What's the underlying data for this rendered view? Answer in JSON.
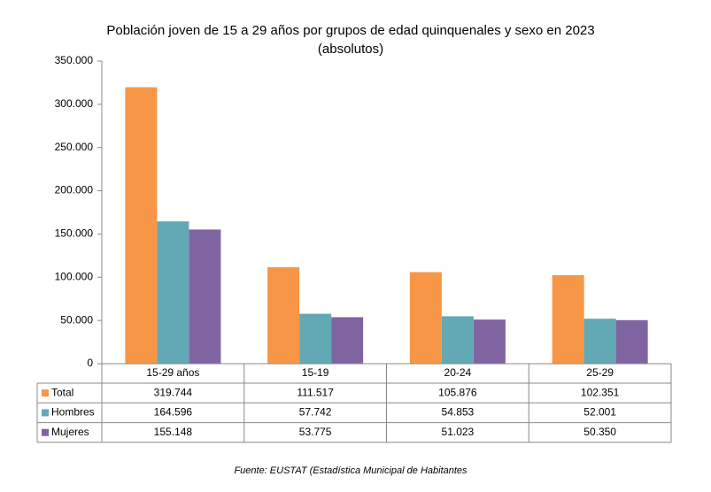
{
  "chart_data": {
    "type": "bar",
    "title": "Población joven de 15 a 29 años por grupos de edad quinquenales y sexo en 2023",
    "subtitle": "(absolutos)",
    "source": "Fuente: EUSTAT (Estadística Municipal de Habitantes",
    "categories": [
      "15-29 años",
      "15-19",
      "20-24",
      "25-29"
    ],
    "series": [
      {
        "name": "Total",
        "color": "#f79646",
        "values": [
          319744,
          111517,
          105876,
          102351
        ],
        "value_labels": [
          "319.744",
          "111.517",
          "105.876",
          "102.351"
        ]
      },
      {
        "name": "Hombres",
        "color": "#62a9b5",
        "values": [
          164596,
          57742,
          54853,
          52001
        ],
        "value_labels": [
          "164.596",
          "57.742",
          "54.853",
          "52.001"
        ]
      },
      {
        "name": "Mujeres",
        "color": "#8064a2",
        "values": [
          155148,
          53775,
          51023,
          50350
        ],
        "value_labels": [
          "155.148",
          "53.775",
          "51.023",
          "50.350"
        ]
      }
    ],
    "ylim": [
      0,
      350000
    ],
    "yticks": [
      0,
      {
        "value": 50000,
        "label": "50.000"
      },
      {
        "value": 100000,
        "label": "100.000"
      },
      {
        "value": 150000,
        "label": "150.000"
      },
      {
        "value": 200000,
        "label": "200.000"
      },
      {
        "value": 250000,
        "label": "250.000"
      },
      {
        "value": 300000,
        "label": "300.000"
      },
      {
        "value": 350000,
        "label": "350.000"
      }
    ],
    "grid": false
  }
}
